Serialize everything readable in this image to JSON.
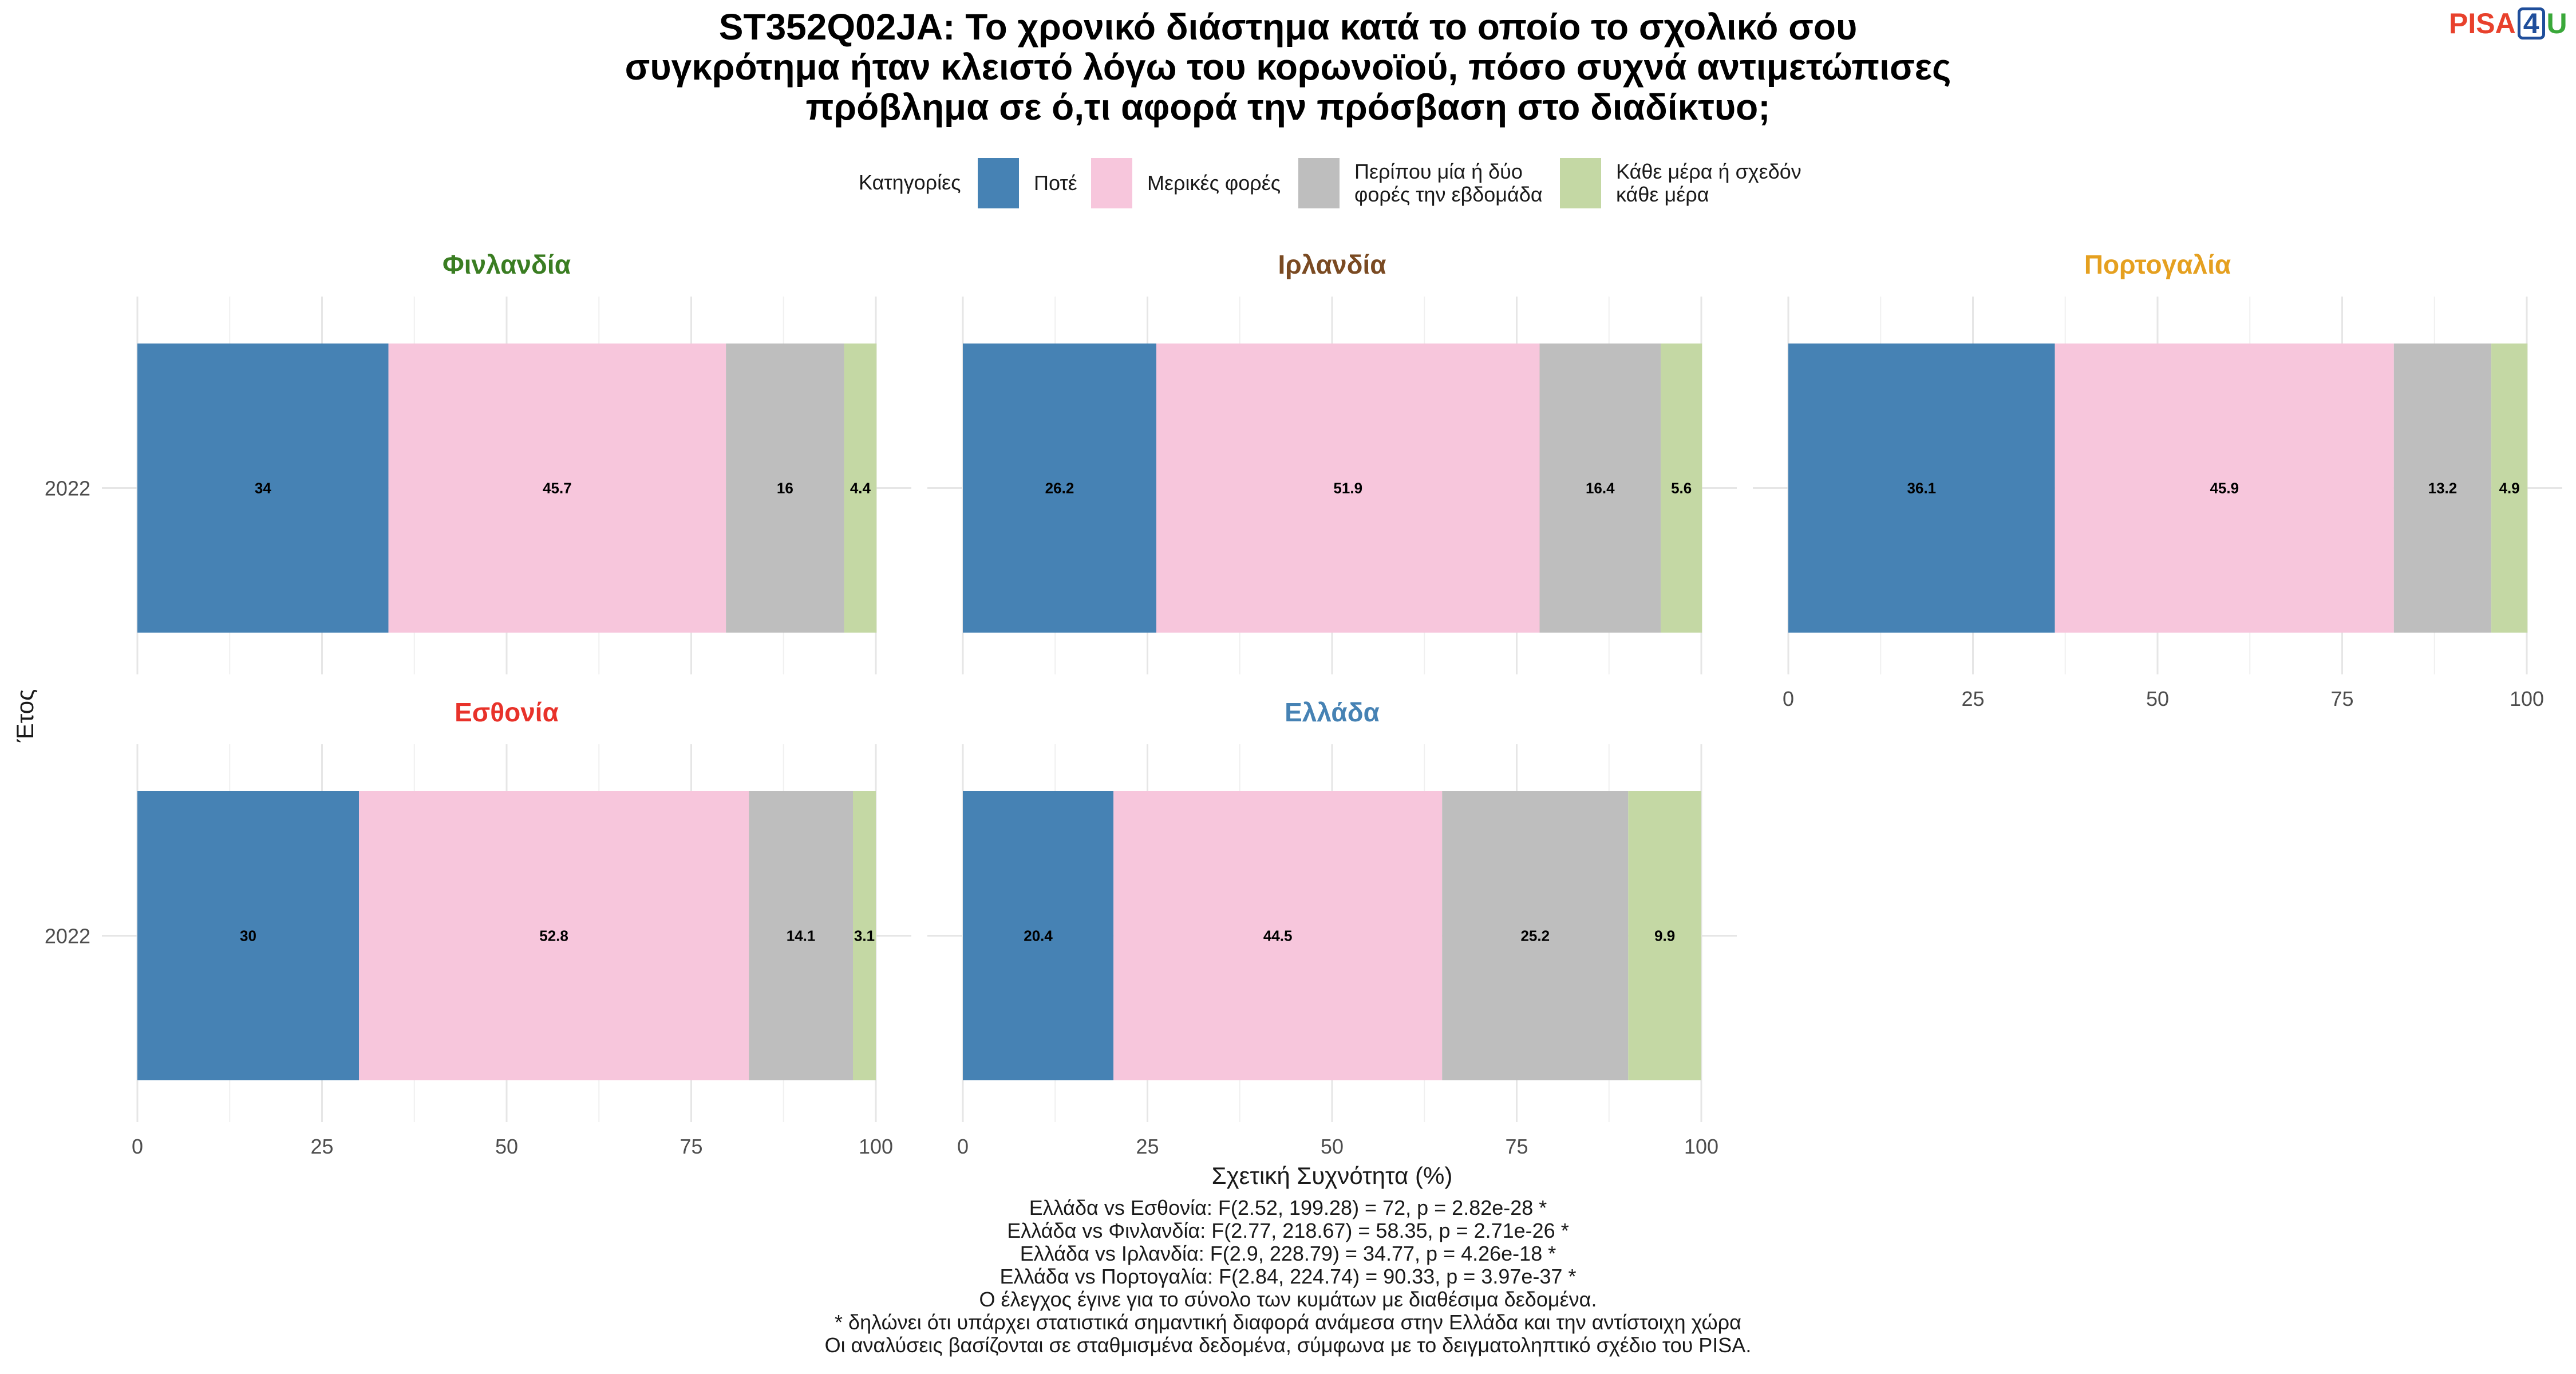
{
  "title": {
    "line1": "ST352Q02JA: Το χρονικό διάστημα κατά το οποίο το σχολικό σου",
    "line2": "συγκρότημα ήταν κλειστό λόγω του κορωνοϊού, πόσο συχνά αντιμετώπισες",
    "line3": "πρόβλημα σε ό,τι αφορά την πρόσβαση στο διαδίκτυο;"
  },
  "logo": {
    "pisa": "PISA",
    "four": "4",
    "u": "U"
  },
  "legend": {
    "title": "Κατηγορίες",
    "items": [
      {
        "label": "Ποτέ",
        "color": "#4682b4"
      },
      {
        "label": "Μερικές φορές",
        "color": "#f7c6dc"
      },
      {
        "label": "Περίπου μία ή δύο\nφορές την εβδομάδα",
        "color": "#bebebe"
      },
      {
        "label": "Κάθε μέρα ή σχεδόν\nκάθε μέρα",
        "color": "#c4d8a4"
      }
    ]
  },
  "chart_data": {
    "type": "bar",
    "orientation": "horizontal-stacked",
    "xlabel": "Σχετική Συχνότητα (%)",
    "ylabel": "Έτος",
    "xlim": [
      0,
      100
    ],
    "xticks": [
      0,
      25,
      50,
      75,
      100
    ],
    "categories": [
      "Ποτέ",
      "Μερικές φορές",
      "Περίπου μία ή δύο φορές την εβδομάδα",
      "Κάθε μέρα ή σχεδόν κάθε μέρα"
    ],
    "grid": true,
    "legend_position": "top",
    "panels": [
      {
        "name": "Φινλανδία",
        "color": "#3a7d22",
        "year": "2022",
        "values": [
          34,
          45.7,
          16,
          4.4
        ]
      },
      {
        "name": "Ιρλανδία",
        "color": "#7a4a22",
        "year": "2022",
        "values": [
          26.2,
          51.9,
          16.4,
          5.6
        ]
      },
      {
        "name": "Πορτογαλία",
        "color": "#e5a020",
        "year": "2022",
        "values": [
          36.1,
          45.9,
          13.2,
          4.9
        ]
      },
      {
        "name": "Εσθονία",
        "color": "#e8322a",
        "year": "2022",
        "values": [
          30,
          52.8,
          14.1,
          3.1
        ]
      },
      {
        "name": "Ελλάδα",
        "color": "#4682b4",
        "year": "2022",
        "values": [
          20.4,
          44.5,
          25.2,
          9.9
        ]
      }
    ]
  },
  "notes": [
    "Ελλάδα vs Εσθονία: F(2.52, 199.28) = 72, p = 2.82e-28 *",
    "Ελλάδα vs Φινλανδία: F(2.77, 218.67) = 58.35, p = 2.71e-26 *",
    "Ελλάδα vs Ιρλανδία: F(2.9, 228.79) = 34.77, p = 4.26e-18 *",
    "Ελλάδα vs Πορτογαλία: F(2.84, 224.74) = 90.33, p = 3.97e-37 *",
    "Ο έλεγχος έγινε για το σύνολο των κυμάτων με διαθέσιμα δεδομένα.",
    "* δηλώνει ότι υπάρχει στατιστικά σημαντική διαφορά ανάμεσα στην Ελλάδα και την αντίστοιχη χώρα",
    "Οι αναλύσεις βασίζονται σε σταθμισμένα δεδομένα, σύμφωνα με το δειγματοληπτικό σχέδιο του PISA."
  ]
}
